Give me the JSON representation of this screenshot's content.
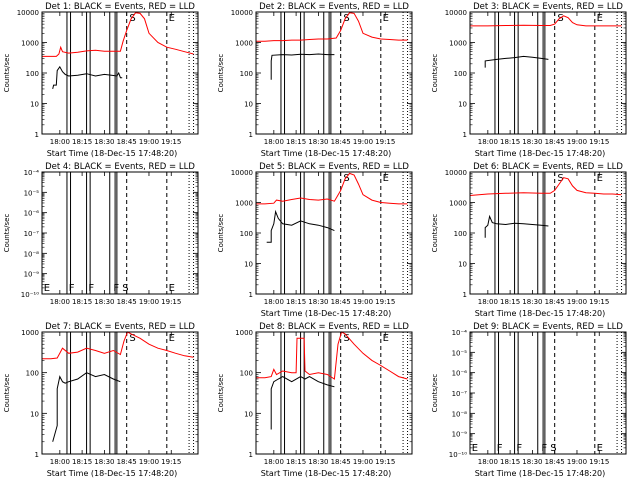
{
  "x_tick_labels": [
    "18:00",
    "18:15",
    "18:30",
    "18:45",
    "19:00",
    "19:15"
  ],
  "x_ticks_min": [
    18.0,
    18.25,
    18.5,
    18.75,
    19.0,
    19.25
  ],
  "xlim_hours": [
    17.8,
    19.55
  ],
  "colors": {
    "events": "#000000",
    "lld": "#ff0000"
  },
  "chart_data": [
    {
      "type": "line",
      "detector": "1",
      "title": "Det 1: BLACK = Events, RED = LLD",
      "xlabel": "Start Time (18-Dec-15 17:48:20)",
      "ylabel": "Counts/sec",
      "yscale": "log",
      "ylim": [
        1,
        10000
      ],
      "ytick_labels": [
        "1",
        "10",
        "100",
        "1000",
        "10000"
      ],
      "marker_lines": [
        18.08,
        18.12,
        18.3,
        18.34,
        18.56,
        18.62,
        18.64
      ],
      "dashed_lines": [
        18.75,
        19.2
      ],
      "dotted_lines": [
        19.45,
        19.5
      ],
      "annotations": [
        {
          "text": "S",
          "x": 18.78
        },
        {
          "text": "E",
          "x": 19.22
        }
      ],
      "series": [
        {
          "role": "events",
          "x": [
            17.92,
            17.93,
            17.96,
            17.97,
            18.0,
            18.03,
            18.06,
            18.1,
            18.2,
            18.3,
            18.4,
            18.5,
            18.58,
            18.64,
            18.66,
            18.68,
            18.7
          ],
          "y": [
            30,
            40,
            40,
            120,
            160,
            110,
            90,
            80,
            85,
            95,
            80,
            90,
            85,
            80,
            100,
            70,
            70
          ]
        },
        {
          "role": "lld",
          "x": [
            17.8,
            17.9,
            17.96,
            17.99,
            18.01,
            18.03,
            18.1,
            18.2,
            18.3,
            18.4,
            18.5,
            18.6,
            18.68,
            18.71,
            18.75,
            18.8,
            18.85,
            18.9,
            18.95,
            19.0,
            19.1,
            19.2,
            19.3,
            19.4,
            19.5
          ],
          "y": [
            350,
            350,
            350,
            420,
            700,
            500,
            450,
            480,
            530,
            560,
            520,
            520,
            520,
            1100,
            2500,
            6000,
            9500,
            9000,
            6000,
            2000,
            1000,
            700,
            600,
            500,
            420
          ]
        }
      ]
    },
    {
      "type": "line",
      "detector": "2",
      "title": "Det 2: BLACK = Events, RED = LLD",
      "xlabel": "Start Time (18-Dec-15 17:48:20)",
      "ylabel": "Counts/sec",
      "yscale": "log",
      "ylim": [
        1,
        10000
      ],
      "ytick_labels": [
        "1",
        "10",
        "100",
        "1000",
        "10000"
      ],
      "marker_lines": [
        18.08,
        18.12,
        18.3,
        18.34,
        18.56,
        18.62,
        18.64
      ],
      "dashed_lines": [
        18.75,
        19.2
      ],
      "dotted_lines": [
        19.45,
        19.5
      ],
      "annotations": [
        {
          "text": "S",
          "x": 18.78
        },
        {
          "text": "E",
          "x": 19.22
        }
      ],
      "series": [
        {
          "role": "events",
          "x": [
            17.97,
            17.97,
            17.98,
            18.1,
            18.2,
            18.3,
            18.4,
            18.5,
            18.6,
            18.68
          ],
          "y": [
            60,
            250,
            380,
            400,
            390,
            410,
            400,
            420,
            400,
            400
          ]
        },
        {
          "role": "lld",
          "x": [
            17.8,
            17.9,
            18.0,
            18.1,
            18.2,
            18.3,
            18.4,
            18.5,
            18.6,
            18.7,
            18.75,
            18.8,
            18.85,
            18.9,
            18.95,
            19.0,
            19.1,
            19.2,
            19.3,
            19.4,
            19.5
          ],
          "y": [
            1100,
            1100,
            1150,
            1150,
            1200,
            1200,
            1250,
            1300,
            1300,
            1400,
            2500,
            6000,
            9500,
            9000,
            5000,
            2000,
            1500,
            1300,
            1250,
            1200,
            1200
          ]
        }
      ]
    },
    {
      "type": "line",
      "detector": "3",
      "title": "Det 3: BLACK = Events, RED = LLD",
      "xlabel": "Start Time (18-Dec-15 17:48:20)",
      "ylabel": "Counts/sec",
      "yscale": "log",
      "ylim": [
        1,
        10000
      ],
      "ytick_labels": [
        "1",
        "10",
        "100",
        "1000",
        "10000"
      ],
      "marker_lines": [
        18.08,
        18.12,
        18.3,
        18.34,
        18.56,
        18.62,
        18.64
      ],
      "dashed_lines": [
        18.75,
        19.2
      ],
      "dotted_lines": [
        19.45,
        19.5
      ],
      "annotations": [
        {
          "text": "S",
          "x": 18.78
        },
        {
          "text": "E",
          "x": 19.22
        }
      ],
      "series": [
        {
          "role": "events",
          "x": [
            17.97,
            17.97,
            18.1,
            18.2,
            18.3,
            18.4,
            18.5,
            18.6,
            18.68
          ],
          "y": [
            150,
            250,
            280,
            300,
            320,
            350,
            330,
            300,
            280
          ]
        },
        {
          "role": "lld",
          "x": [
            17.8,
            17.9,
            18.0,
            18.2,
            18.4,
            18.6,
            18.7,
            18.75,
            18.8,
            18.85,
            18.9,
            18.95,
            19.0,
            19.1,
            19.2,
            19.3,
            19.4,
            19.5
          ],
          "y": [
            3500,
            3500,
            3500,
            3600,
            3700,
            3600,
            3600,
            4000,
            6000,
            7500,
            6500,
            4500,
            3800,
            3500,
            3500,
            3500,
            3500,
            3500
          ]
        }
      ]
    },
    {
      "type": "line",
      "detector": "4",
      "title": "Det 4: BLACK = Events, RED = LLD",
      "xlabel": "",
      "ylabel": "Counts/sec",
      "yscale": "log",
      "ylim": [
        1e-10,
        0.0001
      ],
      "ytick_labels": [
        "10⁻¹⁰",
        "10⁻⁹",
        "10⁻⁸",
        "10⁻⁷",
        "10⁻⁶",
        "10⁻⁵",
        "10⁻⁴"
      ],
      "marker_lines": [
        18.08,
        18.12,
        18.3,
        18.34,
        18.56,
        18.62,
        18.64
      ],
      "dashed_lines": [
        18.75,
        19.2
      ],
      "dotted_lines": [
        19.45,
        19.5
      ],
      "annotations": [
        {
          "text": "E",
          "x": 17.82
        },
        {
          "text": "F",
          "x": 18.1
        },
        {
          "text": "F",
          "x": 18.32
        },
        {
          "text": "F",
          "x": 18.6
        },
        {
          "text": "S",
          "x": 18.7
        },
        {
          "text": "E",
          "x": 19.22
        }
      ],
      "series": []
    },
    {
      "type": "line",
      "detector": "5",
      "title": "Det 5: BLACK = Events, RED = LLD",
      "xlabel": "Start Time (18-Dec-15 17:48:20)",
      "ylabel": "Counts/sec",
      "yscale": "log",
      "ylim": [
        1,
        10000
      ],
      "ytick_labels": [
        "1",
        "10",
        "100",
        "1000",
        "10000"
      ],
      "marker_lines": [
        18.08,
        18.12,
        18.3,
        18.34,
        18.56,
        18.62,
        18.64
      ],
      "dashed_lines": [
        18.75,
        19.2
      ],
      "dotted_lines": [
        19.45,
        19.5
      ],
      "annotations": [
        {
          "text": "S",
          "x": 18.78
        },
        {
          "text": "E",
          "x": 19.22
        }
      ],
      "series": [
        {
          "role": "events",
          "x": [
            17.92,
            17.97,
            17.97,
            18.0,
            18.02,
            18.05,
            18.1,
            18.2,
            18.3,
            18.4,
            18.5,
            18.6,
            18.68
          ],
          "y": [
            50,
            50,
            120,
            200,
            500,
            300,
            200,
            180,
            250,
            200,
            180,
            150,
            120
          ]
        },
        {
          "role": "lld",
          "x": [
            17.8,
            17.9,
            18.0,
            18.03,
            18.1,
            18.2,
            18.3,
            18.4,
            18.5,
            18.6,
            18.68,
            18.75,
            18.8,
            18.85,
            18.9,
            18.95,
            19.0,
            19.1,
            19.2,
            19.3,
            19.4,
            19.5
          ],
          "y": [
            900,
            900,
            950,
            1200,
            1100,
            1250,
            1400,
            1250,
            1200,
            1300,
            1100,
            2500,
            6000,
            9000,
            8000,
            4000,
            1800,
            1200,
            1000,
            950,
            900,
            900
          ]
        }
      ]
    },
    {
      "type": "line",
      "detector": "6",
      "title": "Det 6: BLACK = Events, RED = LLD",
      "xlabel": "Start Time (18-Dec-15 17:48:20)",
      "ylabel": "Counts/sec",
      "yscale": "log",
      "ylim": [
        1,
        10000
      ],
      "ytick_labels": [
        "1",
        "10",
        "100",
        "1000",
        "10000"
      ],
      "marker_lines": [
        18.08,
        18.12,
        18.3,
        18.34,
        18.56,
        18.62,
        18.64
      ],
      "dashed_lines": [
        18.75,
        19.2
      ],
      "dotted_lines": [
        19.45,
        19.5
      ],
      "annotations": [
        {
          "text": "S",
          "x": 18.78
        },
        {
          "text": "E",
          "x": 19.22
        }
      ],
      "series": [
        {
          "role": "events",
          "x": [
            17.97,
            17.97,
            18.0,
            18.02,
            18.05,
            18.1,
            18.2,
            18.3,
            18.4,
            18.5,
            18.6,
            18.68
          ],
          "y": [
            70,
            150,
            180,
            350,
            220,
            200,
            190,
            210,
            200,
            190,
            180,
            170
          ]
        },
        {
          "role": "lld",
          "x": [
            17.8,
            17.9,
            18.0,
            18.2,
            18.4,
            18.6,
            18.7,
            18.75,
            18.8,
            18.85,
            18.9,
            18.95,
            19.0,
            19.1,
            19.2,
            19.3,
            19.4,
            19.5
          ],
          "y": [
            1700,
            1800,
            1900,
            2000,
            2100,
            2000,
            2000,
            2500,
            4000,
            6500,
            6000,
            3500,
            2500,
            2100,
            2000,
            1900,
            1900,
            1800
          ]
        }
      ]
    },
    {
      "type": "line",
      "detector": "7",
      "title": "Det 7: BLACK = Events, RED = LLD",
      "xlabel": "Start Time (18-Dec-15 17:48:20)",
      "ylabel": "Counts/sec",
      "yscale": "log",
      "ylim": [
        1,
        1000
      ],
      "ytick_labels": [
        "1",
        "10",
        "100",
        "1000"
      ],
      "marker_lines": [
        18.08,
        18.12,
        18.3,
        18.34,
        18.56,
        18.62,
        18.64
      ],
      "dashed_lines": [
        18.75,
        19.2
      ],
      "dotted_lines": [
        19.45,
        19.5
      ],
      "annotations": [
        {
          "text": "S",
          "x": 18.78
        },
        {
          "text": "E",
          "x": 19.22
        }
      ],
      "series": [
        {
          "role": "events",
          "x": [
            17.92,
            17.97,
            17.97,
            18.0,
            18.03,
            18.06,
            18.1,
            18.2,
            18.3,
            18.4,
            18.5,
            18.6,
            18.68
          ],
          "y": [
            2,
            5,
            40,
            80,
            60,
            55,
            60,
            70,
            100,
            80,
            90,
            70,
            60
          ]
        },
        {
          "role": "lld",
          "x": [
            17.8,
            17.9,
            17.97,
            18.0,
            18.03,
            18.1,
            18.2,
            18.3,
            18.4,
            18.5,
            18.6,
            18.68,
            18.72,
            18.76,
            18.8,
            18.9,
            19.0,
            19.1,
            19.2,
            19.3,
            19.4,
            19.5
          ],
          "y": [
            220,
            220,
            230,
            300,
            400,
            300,
            320,
            400,
            350,
            300,
            350,
            280,
            600,
            1000,
            900,
            700,
            500,
            400,
            350,
            300,
            260,
            240
          ]
        }
      ]
    },
    {
      "type": "line",
      "detector": "8",
      "title": "Det 8: BLACK = Events, RED = LLD",
      "xlabel": "Start Time (18-Dec-15 17:48:20)",
      "ylabel": "Counts/sec",
      "yscale": "log",
      "ylim": [
        1,
        1000
      ],
      "ytick_labels": [
        "1",
        "10",
        "100",
        "1000"
      ],
      "marker_lines": [
        18.08,
        18.12,
        18.3,
        18.34,
        18.56,
        18.62,
        18.64
      ],
      "dashed_lines": [
        18.75,
        19.2
      ],
      "dotted_lines": [
        19.45,
        19.5
      ],
      "annotations": [
        {
          "text": "S",
          "x": 18.78
        },
        {
          "text": "E",
          "x": 19.22
        }
      ],
      "series": [
        {
          "role": "events",
          "x": [
            17.97,
            17.97,
            18.0,
            18.05,
            18.1,
            18.2,
            18.3,
            18.35,
            18.4,
            18.5,
            18.6,
            18.68
          ],
          "y": [
            4,
            40,
            60,
            70,
            80,
            60,
            80,
            70,
            80,
            60,
            50,
            45
          ]
        },
        {
          "role": "lld",
          "x": [
            17.8,
            17.9,
            17.97,
            18.0,
            18.03,
            18.1,
            18.2,
            18.25,
            18.26,
            18.3,
            18.34,
            18.35,
            18.4,
            18.5,
            18.6,
            18.68,
            18.72,
            18.76,
            18.8,
            18.9,
            19.0,
            19.1,
            19.2,
            19.3,
            19.4,
            19.5
          ],
          "y": [
            75,
            75,
            80,
            120,
            90,
            110,
            100,
            100,
            700,
            700,
            700,
            110,
            90,
            100,
            90,
            70,
            500,
            1000,
            900,
            500,
            300,
            200,
            150,
            110,
            80,
            70
          ]
        }
      ]
    },
    {
      "type": "line",
      "detector": "9",
      "title": "Det 9: BLACK = Events, RED = LLD",
      "xlabel": "Start Time (18-Dec-15 17:48:20)",
      "ylabel": "Counts/sec",
      "yscale": "log",
      "ylim": [
        1e-10,
        0.0001
      ],
      "ytick_labels": [
        "10⁻¹⁰",
        "10⁻⁹",
        "10⁻⁸",
        "10⁻⁷",
        "10⁻⁶",
        "10⁻⁵",
        "10⁻⁴"
      ],
      "marker_lines": [
        18.08,
        18.12,
        18.3,
        18.34,
        18.56,
        18.62,
        18.64
      ],
      "dashed_lines": [
        18.75,
        19.2
      ],
      "dotted_lines": [
        19.45,
        19.5
      ],
      "annotations": [
        {
          "text": "E",
          "x": 17.82
        },
        {
          "text": "F",
          "x": 18.1
        },
        {
          "text": "F",
          "x": 18.32
        },
        {
          "text": "F",
          "x": 18.6
        },
        {
          "text": "S",
          "x": 18.7
        },
        {
          "text": "E",
          "x": 19.22
        }
      ],
      "series": []
    }
  ]
}
